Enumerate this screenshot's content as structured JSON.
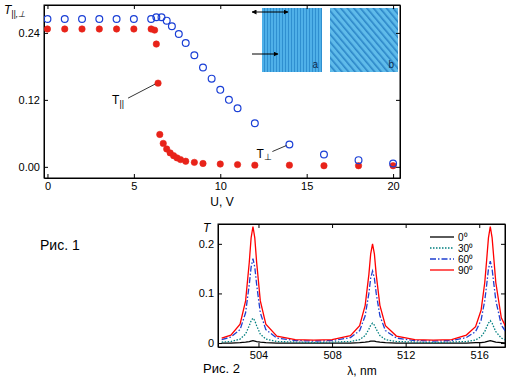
{
  "chart_data": [
    {
      "type": "scatter",
      "title": "Рис. 1",
      "xlabel": "U, V",
      "ylabel": "T||,⊥",
      "xlim": [
        -0.2,
        20.4
      ],
      "ylim": [
        -0.02,
        0.29
      ],
      "xticks": [
        0,
        5,
        10,
        15,
        20
      ],
      "yticks": [
        {
          "value": 0,
          "label": "0.00"
        },
        {
          "value": 0.12,
          "label": "0.12"
        },
        {
          "value": 0.24,
          "label": "0.24"
        }
      ],
      "annotations": [
        "a",
        "b"
      ],
      "series": [
        {
          "name": "T||",
          "color": "#e8231a",
          "marker": "circle",
          "x": [
            0,
            1,
            2,
            3,
            4,
            5,
            6,
            6.2,
            6.3,
            6.4,
            6.5,
            6.7,
            6.9,
            7.1,
            7.3,
            7.5,
            7.7,
            8,
            8.5,
            9,
            10,
            11,
            12,
            14,
            16,
            18,
            20
          ],
          "values": [
            0.247,
            0.247,
            0.247,
            0.247,
            0.247,
            0.247,
            0.247,
            0.245,
            0.22,
            0.15,
            0.058,
            0.042,
            0.032,
            0.025,
            0.02,
            0.016,
            0.013,
            0.01,
            0.008,
            0.006,
            0.005,
            0.004,
            0.003,
            0.003,
            0.002,
            0.002,
            0.002
          ]
        },
        {
          "name": "T⊥",
          "color": "#1a3fd6",
          "marker": "open-circle",
          "x": [
            0,
            1,
            2,
            3,
            4,
            5,
            6,
            6.3,
            6.6,
            6.9,
            7.2,
            7.6,
            8,
            8.5,
            9,
            9.5,
            10,
            10.5,
            11,
            12,
            14,
            16,
            18,
            20
          ],
          "values": [
            0.265,
            0.265,
            0.265,
            0.265,
            0.265,
            0.265,
            0.265,
            0.268,
            0.268,
            0.262,
            0.252,
            0.238,
            0.222,
            0.2,
            0.178,
            0.158,
            0.138,
            0.12,
            0.105,
            0.078,
            0.04,
            0.022,
            0.012,
            0.006
          ]
        }
      ]
    },
    {
      "type": "line",
      "title": "Рис. 2",
      "xlabel": "λ, nm",
      "ylabel": "T",
      "xlim": [
        501.8,
        517.4
      ],
      "ylim": [
        -0.008,
        0.24
      ],
      "xticks": [
        504,
        508,
        512,
        516
      ],
      "yticks": [
        0,
        0.1,
        0.2
      ],
      "legend": "upper right",
      "x": [
        502.0,
        502.5,
        503.0,
        503.3,
        503.5,
        503.6,
        503.7,
        503.8,
        503.9,
        504.1,
        504.4,
        505,
        506,
        507,
        508,
        509,
        509.5,
        509.8,
        510.0,
        510.1,
        510.2,
        510.3,
        510.4,
        510.6,
        510.9,
        511.5,
        512.5,
        513.5,
        514.5,
        515.3,
        515.8,
        516.1,
        516.3,
        516.4,
        516.5,
        516.6,
        516.7,
        516.9,
        517.2,
        517.5
      ],
      "series": [
        {
          "name": "0⁰",
          "color": "#000000",
          "line_style": "solid",
          "values": [
            0.0,
            0.0,
            0.001,
            0.002,
            0.003,
            0.004,
            0.005,
            0.004,
            0.003,
            0.002,
            0.001,
            0.0,
            0.0,
            0.0,
            0.0,
            0.0,
            0.001,
            0.002,
            0.003,
            0.004,
            0.004,
            0.004,
            0.003,
            0.002,
            0.001,
            0.0,
            0.0,
            0.0,
            0.0,
            0.0,
            0.001,
            0.001,
            0.002,
            0.003,
            0.004,
            0.005,
            0.004,
            0.002,
            0.001,
            0.0
          ]
        },
        {
          "name": "30⁰",
          "color": "#007f7f",
          "line_style": "dotted",
          "values": [
            0.002,
            0.003,
            0.008,
            0.018,
            0.035,
            0.045,
            0.05,
            0.045,
            0.035,
            0.018,
            0.008,
            0.003,
            0.002,
            0.001,
            0.002,
            0.003,
            0.007,
            0.015,
            0.028,
            0.036,
            0.04,
            0.036,
            0.028,
            0.015,
            0.007,
            0.003,
            0.002,
            0.001,
            0.002,
            0.003,
            0.006,
            0.013,
            0.023,
            0.032,
            0.04,
            0.045,
            0.04,
            0.023,
            0.01,
            0.005
          ]
        },
        {
          "name": "60⁰",
          "color": "#1f3fd0",
          "line_style": "dashdot",
          "values": [
            0.007,
            0.012,
            0.027,
            0.061,
            0.118,
            0.153,
            0.17,
            0.153,
            0.118,
            0.061,
            0.027,
            0.01,
            0.005,
            0.004,
            0.005,
            0.011,
            0.025,
            0.055,
            0.1,
            0.131,
            0.145,
            0.131,
            0.1,
            0.055,
            0.025,
            0.01,
            0.005,
            0.004,
            0.005,
            0.011,
            0.023,
            0.046,
            0.086,
            0.116,
            0.149,
            0.165,
            0.149,
            0.086,
            0.036,
            0.02
          ]
        },
        {
          "name": "90⁰",
          "color": "#ff0000",
          "line_style": "solid",
          "values": [
            0.01,
            0.016,
            0.038,
            0.085,
            0.163,
            0.212,
            0.235,
            0.212,
            0.163,
            0.085,
            0.038,
            0.014,
            0.007,
            0.006,
            0.007,
            0.015,
            0.035,
            0.076,
            0.138,
            0.18,
            0.2,
            0.18,
            0.138,
            0.076,
            0.035,
            0.014,
            0.007,
            0.006,
            0.007,
            0.016,
            0.033,
            0.066,
            0.122,
            0.166,
            0.212,
            0.235,
            0.212,
            0.122,
            0.051,
            0.028
          ]
        }
      ]
    }
  ]
}
